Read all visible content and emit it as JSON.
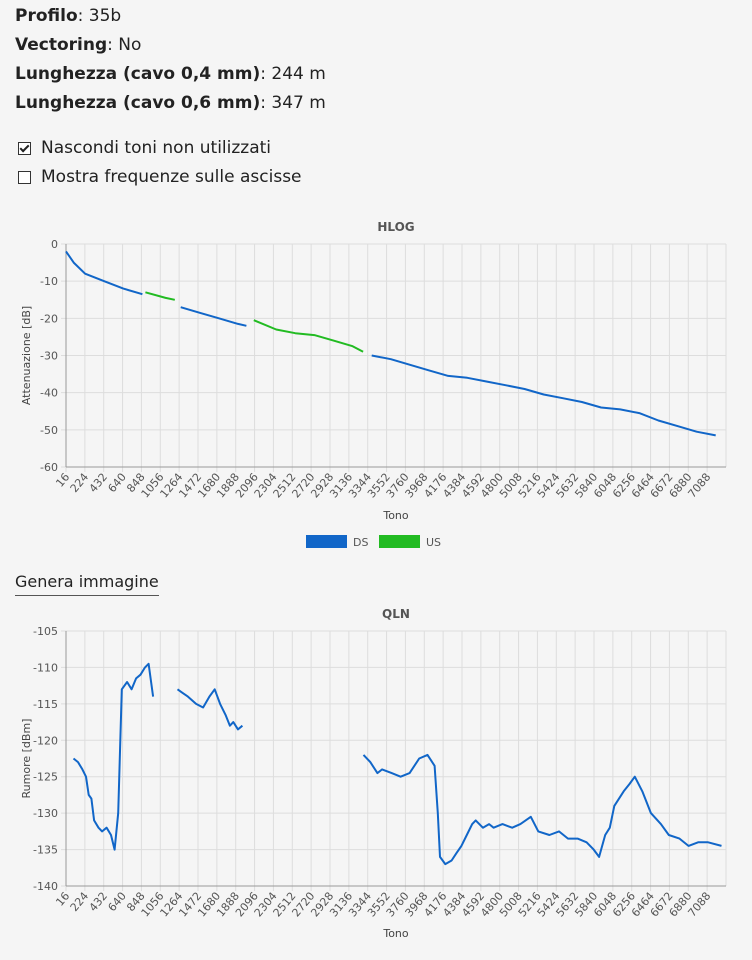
{
  "info": [
    {
      "label": "Profilo",
      "value": "35b"
    },
    {
      "label": "Vectoring",
      "value": "No"
    },
    {
      "label": "Lunghezza (cavo 0,4 mm)",
      "value": "244 m"
    },
    {
      "label": "Lunghezza (cavo 0,6 mm)",
      "value": "347 m"
    }
  ],
  "options": [
    {
      "label": "Nascondi toni non utilizzati",
      "checked": true
    },
    {
      "label": "Mostra frequenze sulle ascisse",
      "checked": false
    }
  ],
  "generate_label": "Genera immagine",
  "colors": {
    "ds": "#1166c8",
    "us": "#22bb22",
    "grid": "#dddddd"
  },
  "chart_data": [
    {
      "type": "line",
      "title": "HLOG",
      "xlabel": "Tono",
      "ylabel": "Attenuazione [dB]",
      "xlim": [
        16,
        7200
      ],
      "ylim": [
        -60,
        0
      ],
      "yticks": [
        0,
        -10,
        -20,
        -30,
        -40,
        -50,
        -60
      ],
      "xticks": [
        "16",
        "224",
        "432",
        "640",
        "848",
        "1056",
        "1264",
        "1472",
        "1680",
        "1888",
        "2096",
        "2304",
        "2512",
        "2720",
        "2928",
        "3136",
        "3344",
        "3552",
        "3760",
        "3968",
        "4176",
        "4384",
        "4592",
        "4800",
        "5008",
        "5216",
        "5424",
        "5632",
        "5840",
        "6048",
        "6256",
        "6464",
        "6672",
        "6880",
        "7088"
      ],
      "grid": true,
      "legend": "bottom",
      "series": [
        {
          "name": "DS",
          "color": "#1166c8",
          "segments": [
            [
              [
                16,
                -2
              ],
              [
                100,
                -5
              ],
              [
                224,
                -8
              ],
              [
                432,
                -10
              ],
              [
                640,
                -12
              ],
              [
                848,
                -13.5
              ]
            ],
            [
              [
                1264,
                -17
              ],
              [
                1472,
                -18.5
              ],
              [
                1680,
                -20
              ],
              [
                1888,
                -21.5
              ],
              [
                1980,
                -22
              ]
            ],
            [
              [
                3344,
                -30
              ],
              [
                3552,
                -31
              ],
              [
                3760,
                -32.5
              ],
              [
                3968,
                -34
              ],
              [
                4176,
                -35.5
              ],
              [
                4384,
                -36
              ],
              [
                4592,
                -37
              ],
              [
                4800,
                -38
              ],
              [
                5008,
                -39
              ],
              [
                5216,
                -40.5
              ],
              [
                5424,
                -41.5
              ],
              [
                5632,
                -42.5
              ],
              [
                5840,
                -44
              ],
              [
                6048,
                -44.5
              ],
              [
                6256,
                -45.5
              ],
              [
                6464,
                -47.5
              ],
              [
                6672,
                -49
              ],
              [
                6880,
                -50.5
              ],
              [
                7088,
                -51.5
              ]
            ]
          ]
        },
        {
          "name": "US",
          "color": "#22bb22",
          "segments": [
            [
              [
                880,
                -13
              ],
              [
                1100,
                -14.5
              ],
              [
                1200,
                -15
              ]
            ],
            [
              [
                2060,
                -20.5
              ],
              [
                2304,
                -23
              ],
              [
                2512,
                -24
              ],
              [
                2720,
                -24.5
              ],
              [
                2928,
                -26
              ],
              [
                3136,
                -27.5
              ],
              [
                3250,
                -29
              ]
            ]
          ]
        }
      ]
    },
    {
      "type": "line",
      "title": "QLN",
      "xlabel": "Tono",
      "ylabel": "Rumore [dBm]",
      "xlim": [
        16,
        7400
      ],
      "ylim": [
        -140,
        -105
      ],
      "yticks": [
        -105,
        -110,
        -115,
        -120,
        -125,
        -130,
        -135,
        -140
      ],
      "xticks": [
        "16",
        "224",
        "432",
        "640",
        "848",
        "1056",
        "1264",
        "1472",
        "1680",
        "1888",
        "2096",
        "2304",
        "2512",
        "2720",
        "2928",
        "3136",
        "3344",
        "3552",
        "3760",
        "3968",
        "4176",
        "4384",
        "4592",
        "4800",
        "5008",
        "5216",
        "5424",
        "5632",
        "5840",
        "6048",
        "6256",
        "6464",
        "6672",
        "6880",
        "7088"
      ],
      "grid": true,
      "series": [
        {
          "name": "DS",
          "color": "#1166c8",
          "segments": [
            [
              [
                100,
                -122.5
              ],
              [
                150,
                -123
              ],
              [
                200,
                -124
              ],
              [
                240,
                -125
              ],
              [
                270,
                -127.5
              ],
              [
                300,
                -128
              ],
              [
                330,
                -131
              ],
              [
                380,
                -132
              ],
              [
                420,
                -132.5
              ],
              [
                470,
                -132
              ],
              [
                520,
                -133
              ],
              [
                560,
                -135
              ],
              [
                600,
                -130
              ],
              [
                640,
                -113
              ],
              [
                700,
                -112
              ],
              [
                750,
                -113
              ],
              [
                800,
                -111.5
              ],
              [
                850,
                -111
              ],
              [
                900,
                -110
              ],
              [
                940,
                -109.5
              ],
              [
                990,
                -114
              ]
            ],
            [
              [
                1264,
                -113
              ],
              [
                1320,
                -113.5
              ],
              [
                1380,
                -114
              ],
              [
                1472,
                -115
              ],
              [
                1550,
                -115.5
              ],
              [
                1620,
                -114
              ],
              [
                1680,
                -113
              ],
              [
                1740,
                -115
              ],
              [
                1800,
                -116.5
              ],
              [
                1850,
                -118
              ],
              [
                1888,
                -117.5
              ],
              [
                1940,
                -118.5
              ],
              [
                1990,
                -118
              ]
            ],
            [
              [
                3344,
                -122
              ],
              [
                3420,
                -123
              ],
              [
                3500,
                -124.5
              ],
              [
                3552,
                -124
              ],
              [
                3660,
                -124.5
              ],
              [
                3760,
                -125
              ],
              [
                3860,
                -124.5
              ],
              [
                3968,
                -122.5
              ],
              [
                4060,
                -122
              ],
              [
                4140,
                -123.5
              ],
              [
                4176,
                -130
              ],
              [
                4200,
                -136
              ],
              [
                4260,
                -137
              ],
              [
                4330,
                -136.5
              ],
              [
                4384,
                -135.5
              ],
              [
                4440,
                -134.5
              ],
              [
                4500,
                -133
              ],
              [
                4560,
                -131.5
              ],
              [
                4600,
                -131
              ],
              [
                4680,
                -132
              ],
              [
                4750,
                -131.5
              ],
              [
                4800,
                -132
              ],
              [
                4900,
                -131.5
              ],
              [
                5008,
                -132
              ],
              [
                5100,
                -131.5
              ],
              [
                5216,
                -130.5
              ],
              [
                5300,
                -132.5
              ],
              [
                5424,
                -133
              ],
              [
                5532,
                -132.5
              ],
              [
                5632,
                -133.5
              ],
              [
                5740,
                -133.5
              ],
              [
                5840,
                -134
              ],
              [
                5920,
                -135
              ],
              [
                5980,
                -136
              ],
              [
                6048,
                -133
              ],
              [
                6100,
                -132
              ],
              [
                6150,
                -129
              ],
              [
                6256,
                -127
              ],
              [
                6320,
                -126
              ],
              [
                6380,
                -125
              ],
              [
                6464,
                -127
              ],
              [
                6560,
                -130
              ],
              [
                6672,
                -131.5
              ],
              [
                6760,
                -133
              ],
              [
                6880,
                -133.5
              ],
              [
                6980,
                -134.5
              ],
              [
                7088,
                -134
              ],
              [
                7200,
                -134
              ],
              [
                7350,
                -134.5
              ]
            ]
          ]
        }
      ]
    }
  ]
}
